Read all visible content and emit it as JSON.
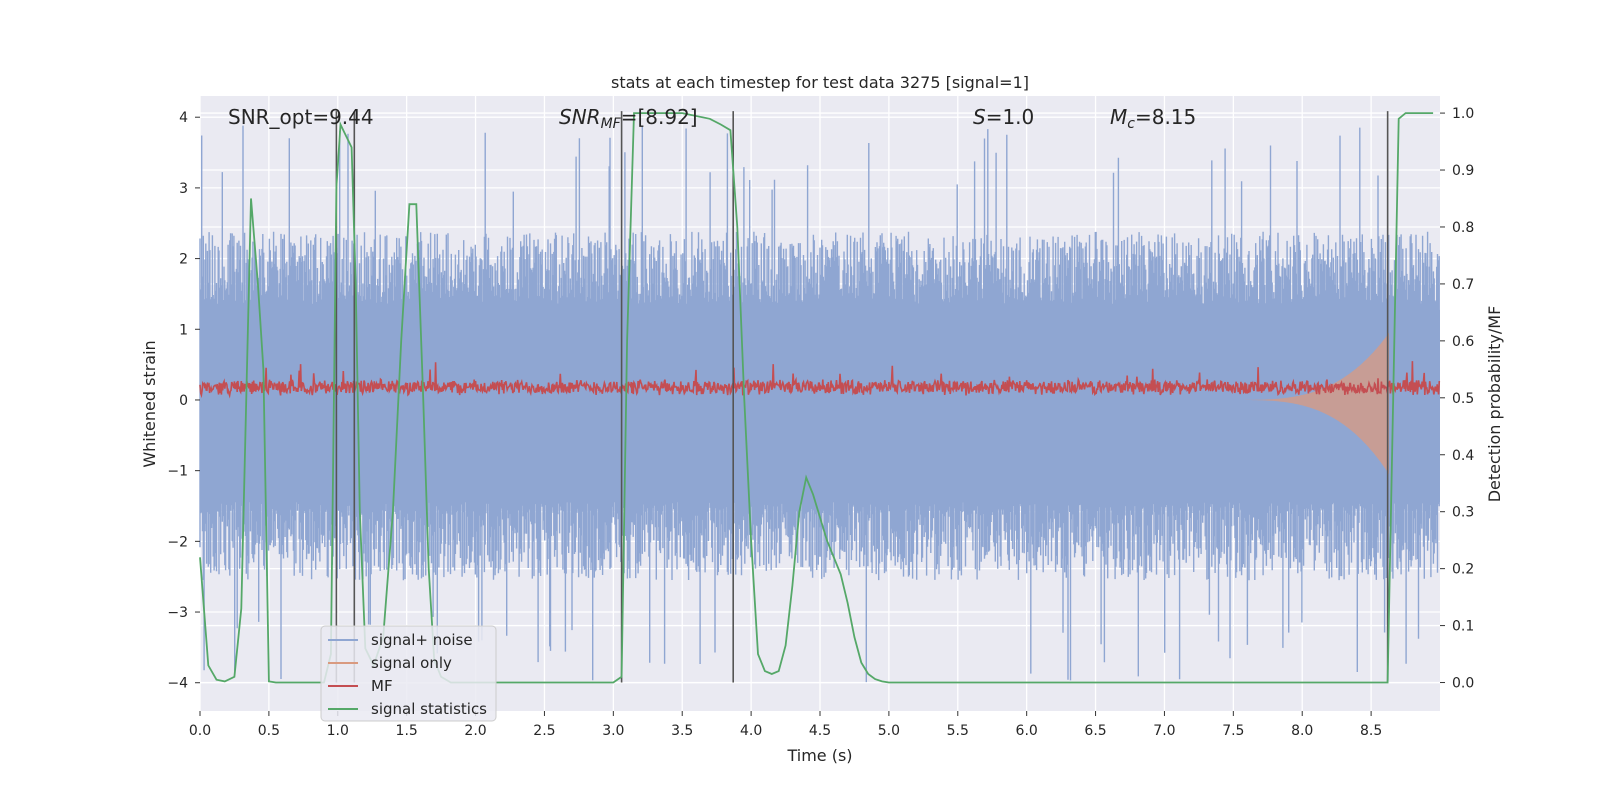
{
  "chart_data": {
    "type": "line",
    "title": "stats at each timestep for test data 3275 [signal=1]",
    "xlabel": "Time (s)",
    "ylabel_left": "Whitened strain",
    "ylabel_right": "Detection probability/MF",
    "xlim": [
      0.0,
      9.0
    ],
    "ylim_left": [
      -4.4,
      4.3
    ],
    "ylim_right": [
      -0.05,
      1.03
    ],
    "x_ticks": [
      "0.0",
      "0.5",
      "1.0",
      "1.5",
      "2.0",
      "2.5",
      "3.0",
      "3.5",
      "4.0",
      "4.5",
      "5.0",
      "5.5",
      "6.0",
      "6.5",
      "7.0",
      "7.5",
      "8.0",
      "8.5"
    ],
    "y_ticks_left": [
      "4",
      "3",
      "2",
      "1",
      "0",
      "−1",
      "−2",
      "−3",
      "−4"
    ],
    "y_ticks_right": [
      "1.0",
      "0.9",
      "0.8",
      "0.7",
      "0.6",
      "0.5",
      "0.4",
      "0.3",
      "0.2",
      "0.1",
      "0.0"
    ],
    "annotations": {
      "snr_opt": "SNR_opt=9.44",
      "snr_mf_main": "SNR",
      "snr_mf_sub": "MF",
      "snr_mf_rest": "=[8.92]",
      "s_main": "S",
      "s_rest": "=1.0",
      "mc_main": "M",
      "mc_sub": "c",
      "mc_rest": "=8.15"
    },
    "legend": {
      "position": "lower-left",
      "entries": [
        "signal+ noise",
        "signal only",
        "MF",
        "signal statistics"
      ]
    },
    "colors": {
      "noise": "#8fa6d2",
      "signal": "#d99a80",
      "mf": "#c44e52",
      "stats": "#55a868",
      "vline": "#555555",
      "background": "#eaeaf2"
    },
    "vlines_x": [
      0.99,
      1.12,
      3.06,
      3.87,
      8.62
    ],
    "noise_band": {
      "typical_amplitude": 1.7,
      "peak_max": 3.9,
      "peak_min": -4.0
    },
    "signal_envelope": {
      "start": 7.5,
      "end": 8.63,
      "peak_amplitude": 1.0
    },
    "mf_level": {
      "mean": 0.18,
      "spread": 0.12,
      "max_peak": 0.55
    },
    "series": [
      {
        "name": "signal statistics",
        "x": [
          0.0,
          0.06,
          0.12,
          0.18,
          0.25,
          0.3,
          0.37,
          0.42,
          0.46,
          0.5,
          0.55,
          0.6,
          0.7,
          0.8,
          0.9,
          0.95,
          0.99,
          1.02,
          1.06,
          1.1,
          1.13,
          1.16,
          1.2,
          1.26,
          1.33,
          1.4,
          1.46,
          1.52,
          1.57,
          1.62,
          1.66,
          1.7,
          1.75,
          1.82,
          1.9,
          2.0,
          2.5,
          3.0,
          3.06,
          3.1,
          3.15,
          3.3,
          3.5,
          3.7,
          3.78,
          3.85,
          3.9,
          3.95,
          4.0,
          4.05,
          4.1,
          4.15,
          4.2,
          4.25,
          4.3,
          4.35,
          4.4,
          4.45,
          4.5,
          4.55,
          4.6,
          4.65,
          4.7,
          4.75,
          4.8,
          4.85,
          4.9,
          4.95,
          5.0,
          5.1,
          5.5,
          6.0,
          7.0,
          8.0,
          8.5,
          8.58,
          8.62,
          8.66,
          8.7,
          8.75,
          8.8,
          8.9,
          8.95
        ],
        "y": [
          0.22,
          0.03,
          0.005,
          0.002,
          0.01,
          0.13,
          0.85,
          0.7,
          0.55,
          0.002,
          0.0,
          0.0,
          0.0,
          0.0,
          0.0,
          0.05,
          0.87,
          0.98,
          0.96,
          0.94,
          0.7,
          0.3,
          0.06,
          0.03,
          0.08,
          0.3,
          0.6,
          0.84,
          0.84,
          0.5,
          0.2,
          0.04,
          0.01,
          0.0,
          0.0,
          0.0,
          0.0,
          0.0,
          0.01,
          0.6,
          1.0,
          1.0,
          1.0,
          0.99,
          0.98,
          0.97,
          0.8,
          0.5,
          0.25,
          0.05,
          0.02,
          0.015,
          0.02,
          0.065,
          0.17,
          0.3,
          0.36,
          0.33,
          0.29,
          0.25,
          0.22,
          0.19,
          0.14,
          0.08,
          0.035,
          0.015,
          0.006,
          0.002,
          0.0,
          0.0,
          0.0,
          0.0,
          0.0,
          0.0,
          0.0,
          0.0,
          0.0,
          0.5,
          0.99,
          1.0,
          1.0,
          1.0,
          1.0
        ]
      }
    ]
  }
}
